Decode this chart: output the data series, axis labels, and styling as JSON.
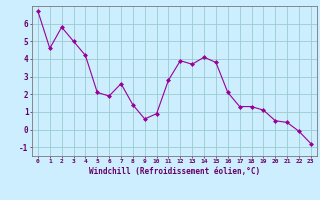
{
  "x": [
    0,
    1,
    2,
    3,
    4,
    5,
    6,
    7,
    8,
    9,
    10,
    11,
    12,
    13,
    14,
    15,
    16,
    17,
    18,
    19,
    20,
    21,
    22,
    23
  ],
  "y": [
    6.7,
    4.6,
    5.8,
    5.0,
    4.2,
    2.1,
    1.9,
    2.6,
    1.4,
    0.6,
    0.9,
    2.8,
    3.9,
    3.7,
    4.1,
    3.8,
    2.1,
    1.3,
    1.3,
    1.1,
    0.5,
    0.4,
    -0.1,
    -0.8
  ],
  "line_color": "#990099",
  "marker": "D",
  "marker_size": 2,
  "bg_color": "#cceeff",
  "grid_color": "#99cccc",
  "xlabel": "Windchill (Refroidissement éolien,°C)",
  "xlabel_color": "#660066",
  "tick_color": "#660066",
  "ylim": [
    -1.5,
    7.0
  ],
  "xlim": [
    -0.5,
    23.5
  ],
  "yticks": [
    -1,
    0,
    1,
    2,
    3,
    4,
    5,
    6
  ],
  "xticks": [
    0,
    1,
    2,
    3,
    4,
    5,
    6,
    7,
    8,
    9,
    10,
    11,
    12,
    13,
    14,
    15,
    16,
    17,
    18,
    19,
    20,
    21,
    22,
    23
  ]
}
